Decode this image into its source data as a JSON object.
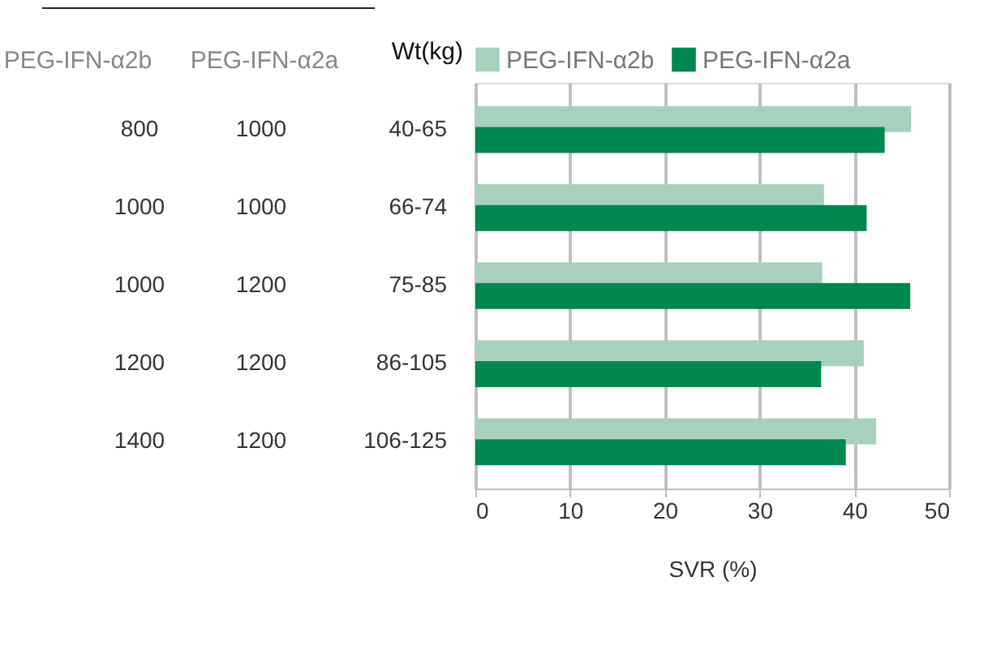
{
  "chart_data": {
    "type": "bar",
    "orientation": "horizontal",
    "xlabel": "SVR (%)",
    "ylabel": "Wt(kg)",
    "categories": [
      "40-65",
      "66-74",
      "75-85",
      "86-105",
      "106-125"
    ],
    "series": [
      {
        "name": "PEG-IFN-α2b",
        "color": "#a8d1bd",
        "values": [
          46.0,
          36.8,
          36.6,
          41.0,
          42.3
        ]
      },
      {
        "name": "PEG-IFN-α2a",
        "color": "#00874f",
        "values": [
          43.2,
          41.3,
          45.9,
          36.5,
          39.1
        ]
      }
    ],
    "xlim": [
      0,
      50
    ],
    "xticks": [
      0,
      10,
      20,
      30,
      40,
      50
    ],
    "grid": "x",
    "legend": "top",
    "annotations": [
      "PEG-IFN-α2b",
      "PEG-IFN-α2a",
      "800",
      "1000",
      "1000",
      "1000",
      "1000",
      "1200",
      "1200",
      "1200",
      "1400",
      "1200"
    ]
  }
}
